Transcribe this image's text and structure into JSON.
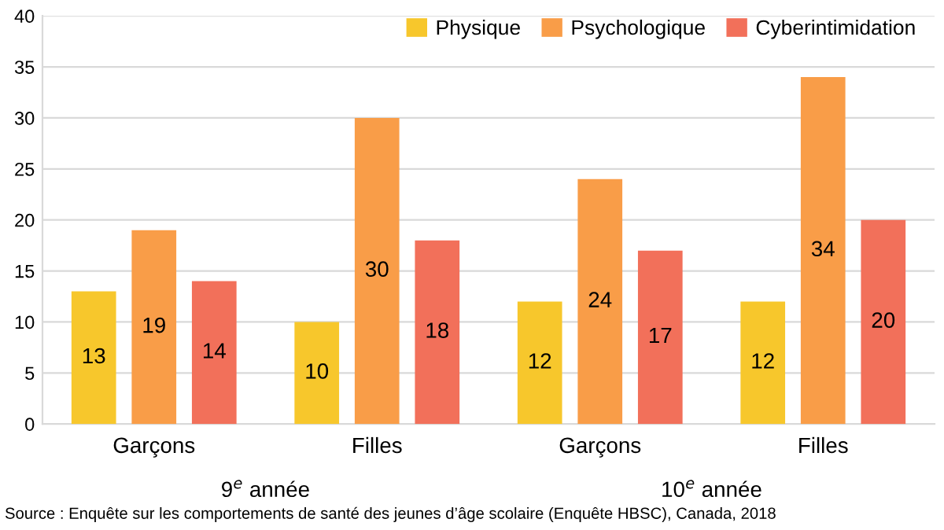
{
  "chart_data": {
    "type": "bar",
    "categories": [
      "Garçons",
      "Filles",
      "Garçons",
      "Filles"
    ],
    "series": [
      {
        "name": "Physique",
        "color": "#f7c72c",
        "values": [
          13,
          10,
          12,
          12
        ]
      },
      {
        "name": "Psychologique",
        "color": "#f99d48",
        "values": [
          19,
          30,
          24,
          34
        ]
      },
      {
        "name": "Cyberintimidation",
        "color": "#f2705a",
        "values": [
          14,
          18,
          17,
          20
        ]
      }
    ],
    "ylim": [
      0,
      40
    ],
    "yticks": [
      0,
      5,
      10,
      15,
      20,
      25,
      30,
      35,
      40
    ],
    "grid": "y",
    "legend": "top right",
    "data_labels": true,
    "annotations": [
      "9$^{e}$ année",
      "10$^{e}$ année",
      "Source : Enquête sur les comportements de santé des jeunes d’âge scolaire (Enquête HBSC), Canada, 2018"
    ]
  }
}
